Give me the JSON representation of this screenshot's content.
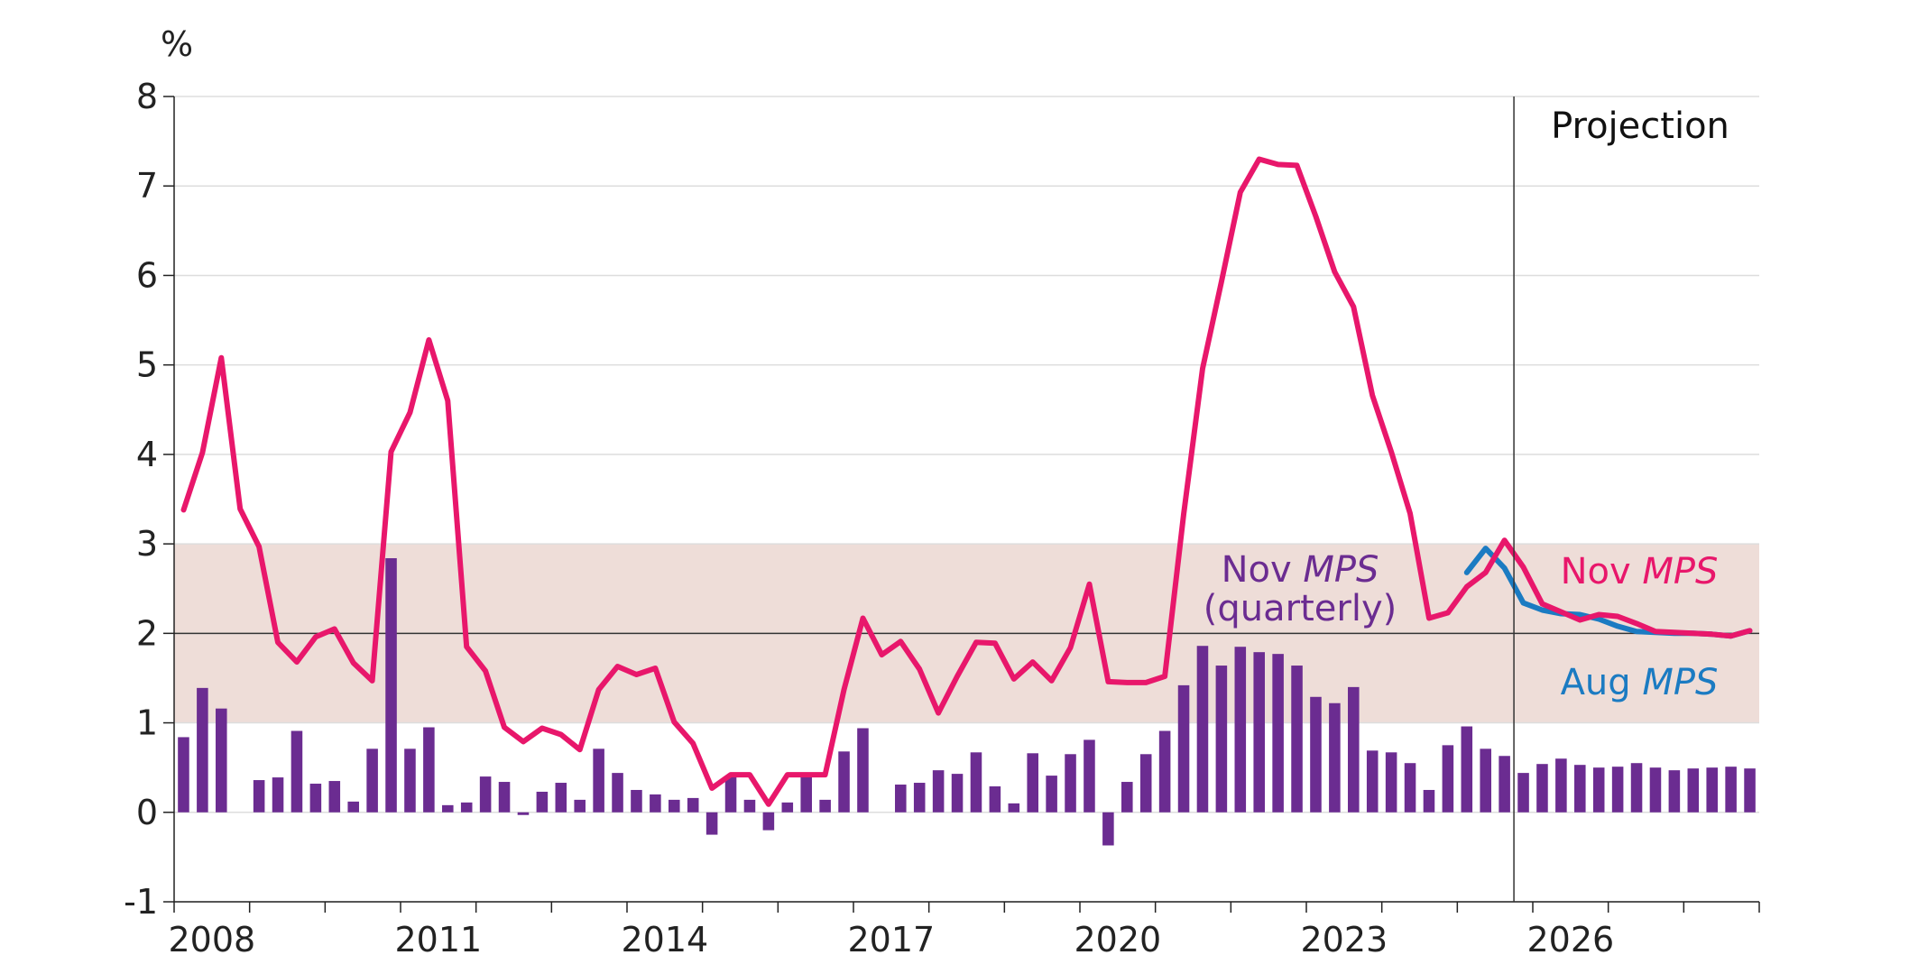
{
  "chart_data": {
    "type": "bar+line",
    "unit_label": "%",
    "ylim": [
      -1,
      8
    ],
    "y_ticks": [
      -1,
      0,
      1,
      2,
      3,
      4,
      5,
      6,
      7,
      8
    ],
    "x_start": 2008.0,
    "x_end": 2029.0,
    "x_tick_labels": [
      "2008",
      "2011",
      "2014",
      "2017",
      "2020",
      "2023",
      "2026"
    ],
    "projection_start": 2025.75,
    "target_band": [
      1,
      3
    ],
    "target": 2,
    "grid": true,
    "annotations": {
      "projection": "Projection",
      "bars_label_1": "Nov MPS",
      "bars_label_2": "(quarterly)",
      "nov_label": "Nov MPS",
      "aug_label": "Aug MPS"
    },
    "colors": {
      "nov_line": "#E8176B",
      "aug_line": "#1B7BC2",
      "bars": "#6B2C91",
      "band": "#EEDDD8",
      "grid": "#DDDDDD",
      "axis": "#222222"
    },
    "series": [
      {
        "name": "Nov MPS (quarterly)",
        "kind": "bar",
        "start": 2008.0,
        "step": 0.25,
        "values": [
          0.84,
          1.39,
          1.16,
          0.0,
          0.36,
          0.39,
          0.91,
          0.32,
          0.35,
          0.12,
          0.71,
          2.84,
          0.71,
          0.95,
          0.08,
          0.11,
          0.4,
          0.34,
          -0.03,
          0.23,
          0.33,
          0.14,
          0.71,
          0.44,
          0.25,
          0.2,
          0.14,
          0.16,
          -0.25,
          0.4,
          0.14,
          -0.2,
          0.11,
          0.42,
          0.14,
          0.68,
          0.94,
          0.0,
          0.31,
          0.33,
          0.47,
          0.43,
          0.67,
          0.29,
          0.1,
          0.66,
          0.41,
          0.65,
          0.81,
          -0.37,
          0.34,
          0.65,
          0.91,
          1.42,
          1.86,
          1.64,
          1.85,
          1.79,
          1.77,
          1.64,
          1.29,
          1.22,
          1.4,
          0.69,
          0.67,
          0.55,
          0.25,
          0.75,
          0.96,
          0.71,
          0.63,
          0.44,
          0.54,
          0.6,
          0.53,
          0.5,
          0.51,
          0.55,
          0.5,
          0.47,
          0.49,
          0.5,
          0.51,
          0.49
        ]
      },
      {
        "name": "Nov MPS",
        "kind": "line",
        "x": [
          2008.0,
          2008.25,
          2008.5,
          2008.75,
          2009.0,
          2009.25,
          2009.5,
          2009.75,
          2010.0,
          2010.25,
          2010.5,
          2010.75,
          2011.0,
          2011.25,
          2011.5,
          2011.75,
          2012.0,
          2012.25,
          2012.5,
          2012.75,
          2013.0,
          2013.25,
          2013.5,
          2013.75,
          2014.0,
          2014.25,
          2014.5,
          2014.75,
          2015.0,
          2015.25,
          2015.5,
          2015.75,
          2016.0,
          2016.25,
          2016.5,
          2016.75,
          2017.0,
          2017.25,
          2017.5,
          2017.75,
          2018.0,
          2018.25,
          2018.5,
          2018.75,
          2019.0,
          2019.25,
          2019.5,
          2019.75,
          2020.0,
          2020.25,
          2020.5,
          2020.75,
          2021.0,
          2021.25,
          2021.5,
          2021.75,
          2022.0,
          2022.25,
          2022.5,
          2022.75,
          2023.0,
          2023.25,
          2023.5,
          2023.75,
          2024.0,
          2024.25,
          2024.5,
          2024.75,
          2025.0,
          2025.25,
          2025.5,
          2025.75,
          2026.0,
          2026.25,
          2026.5,
          2026.75,
          2027.0,
          2027.25,
          2027.5,
          2027.75,
          2028.0,
          2028.25,
          2028.5,
          2028.75
        ],
        "values": [
          3.38,
          4.02,
          5.08,
          3.39,
          2.97,
          1.9,
          1.68,
          1.96,
          2.05,
          1.67,
          1.47,
          4.03,
          4.47,
          5.28,
          4.6,
          1.85,
          1.58,
          0.95,
          0.79,
          0.94,
          0.87,
          0.7,
          1.37,
          1.63,
          1.54,
          1.61,
          1.01,
          0.77,
          0.27,
          0.42,
          0.42,
          0.09,
          0.42,
          0.42,
          0.42,
          1.37,
          2.17,
          1.76,
          1.91,
          1.6,
          1.11,
          1.52,
          1.9,
          1.89,
          1.49,
          1.68,
          1.47,
          1.84,
          2.55,
          1.46,
          1.45,
          1.45,
          1.52,
          3.33,
          4.96,
          5.93,
          6.93,
          7.3,
          7.24,
          7.23,
          6.66,
          6.04,
          5.65,
          4.66,
          4.03,
          3.34,
          2.17,
          2.23,
          2.52,
          2.68,
          3.04,
          2.74,
          2.33,
          2.24,
          2.15,
          2.21,
          2.19,
          2.11,
          2.02,
          2.01,
          2.0,
          1.99,
          1.97,
          2.03
        ]
      },
      {
        "name": "Aug MPS",
        "kind": "line",
        "x": [
          2025.0,
          2025.25,
          2025.5,
          2025.75,
          2026.0,
          2026.25,
          2026.5,
          2026.75,
          2027.0,
          2027.25,
          2027.5,
          2027.75,
          2028.0,
          2028.25,
          2028.5,
          2028.75
        ],
        "values": [
          2.68,
          2.95,
          2.73,
          2.34,
          2.26,
          2.22,
          2.21,
          2.16,
          2.08,
          2.02,
          2.01,
          2.0,
          2.0,
          1.99,
          1.97,
          2.03
        ]
      }
    ]
  }
}
